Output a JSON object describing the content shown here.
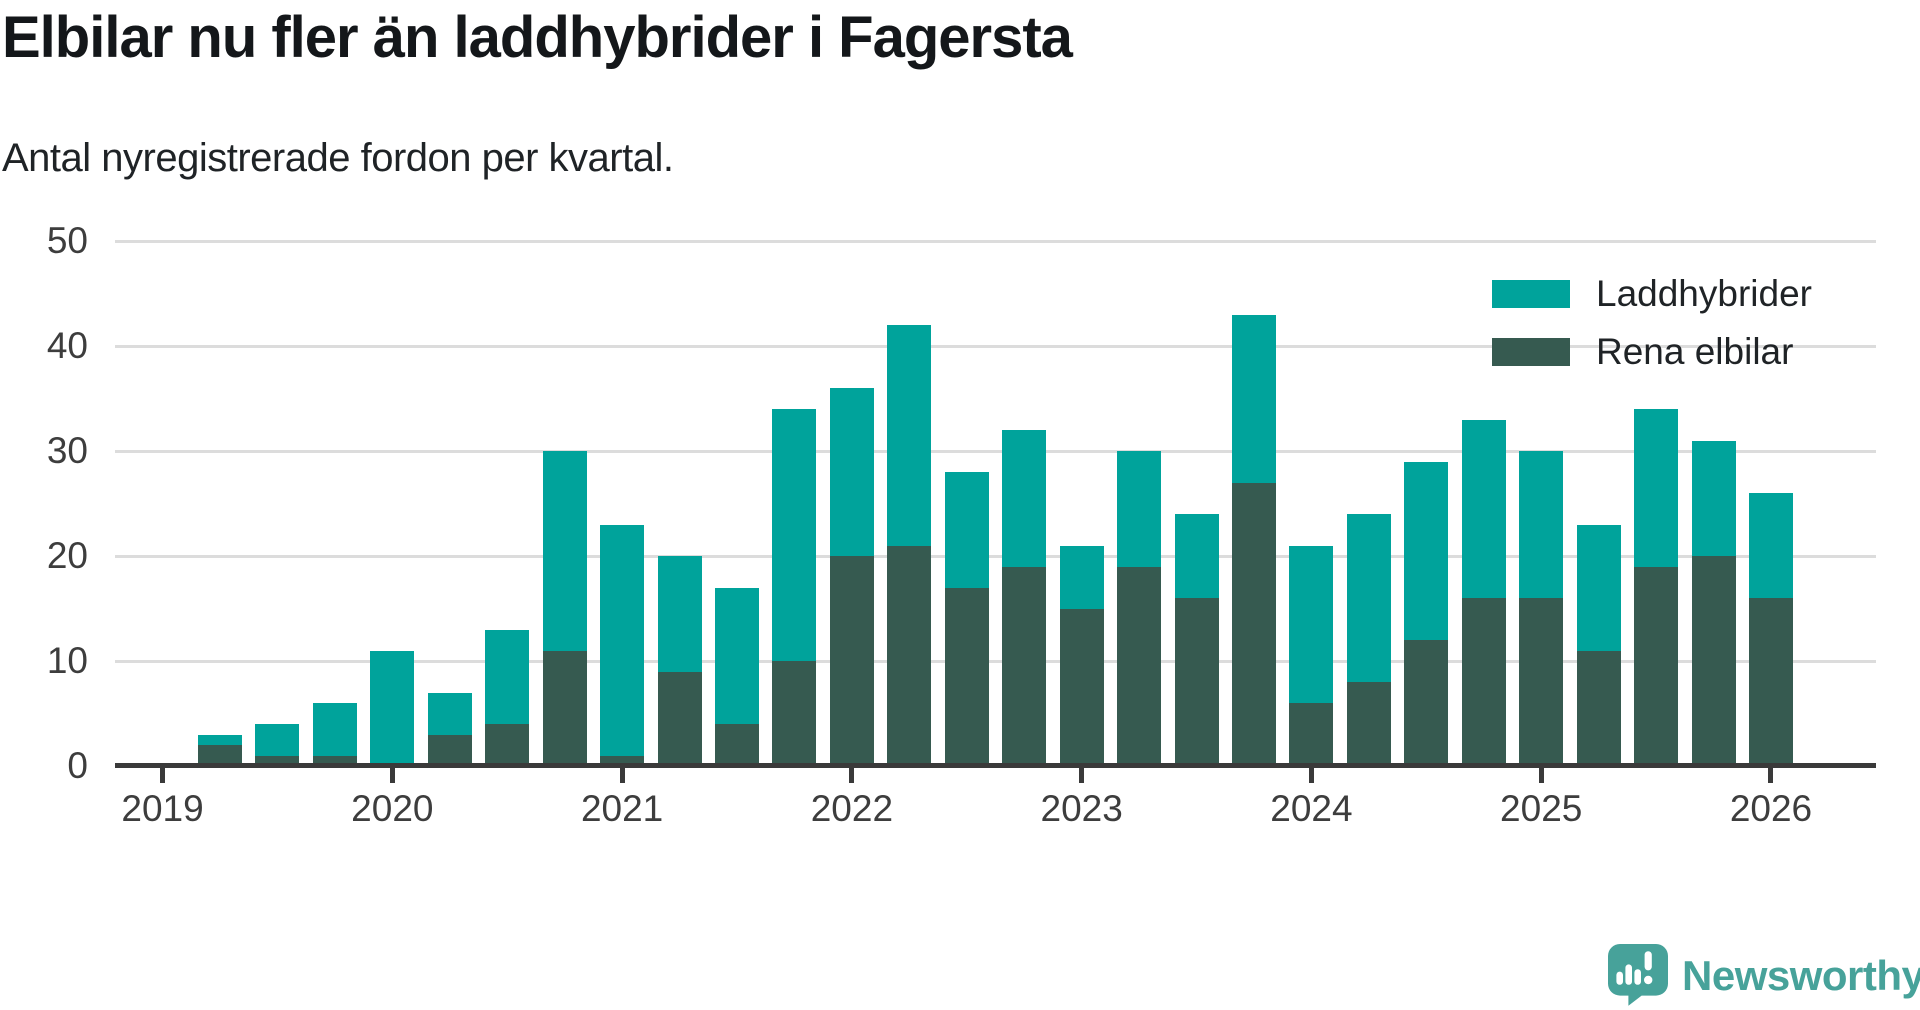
{
  "chart_data": {
    "type": "bar",
    "stacked": true,
    "title": "Elbilar nu fler än laddhybrider i Fagersta",
    "subtitle": "Antal nyregistrerade fordon per kvartal.",
    "x_quarters": [
      "2019 Q2",
      "2019 Q3",
      "2019 Q4",
      "2020 Q1",
      "2020 Q2",
      "2020 Q3",
      "2020 Q4",
      "2021 Q1",
      "2021 Q2",
      "2021 Q3",
      "2021 Q4",
      "2022 Q1",
      "2022 Q2",
      "2022 Q3",
      "2022 Q4",
      "2023 Q1",
      "2023 Q2",
      "2023 Q3",
      "2023 Q4",
      "2024 Q1",
      "2024 Q2",
      "2024 Q3",
      "2024 Q4",
      "2025 Q1",
      "2025 Q2",
      "2025 Q3",
      "2025 Q4",
      "2026 Q1"
    ],
    "series": [
      {
        "name": "Rena elbilar",
        "color": "#365a50",
        "values": [
          2,
          1,
          1,
          0,
          3,
          4,
          11,
          1,
          9,
          4,
          10,
          20,
          21,
          17,
          19,
          15,
          19,
          16,
          27,
          6,
          8,
          12,
          16,
          16,
          11,
          19,
          20,
          16
        ]
      },
      {
        "name": "Laddhybrider",
        "color": "#00a39b",
        "values": [
          1,
          3,
          5,
          11,
          4,
          9,
          19,
          22,
          11,
          13,
          24,
          16,
          21,
          11,
          13,
          6,
          11,
          8,
          16,
          15,
          16,
          17,
          17,
          14,
          12,
          15,
          11,
          10
        ]
      }
    ],
    "totals": [
      3,
      4,
      6,
      11,
      7,
      13,
      30,
      23,
      20,
      17,
      34,
      36,
      42,
      28,
      32,
      21,
      30,
      24,
      43,
      21,
      24,
      29,
      33,
      30,
      23,
      34,
      31,
      26
    ],
    "stack_bottom_to_top": true,
    "legend_order": [
      "Laddhybrider",
      "Rena elbilar"
    ],
    "legend_position": "top-right",
    "ylim": [
      0,
      50
    ],
    "yticks": [
      0,
      10,
      20,
      30,
      40,
      50
    ],
    "x_year_ticks": [
      "2019",
      "2020",
      "2021",
      "2022",
      "2023",
      "2024",
      "2025",
      "2026"
    ],
    "grid": "horizontal"
  },
  "footer": {
    "brand": "Newsworthy",
    "brand_color": "#47a29a",
    "logo_icon": "speech-bubble-bar-chart-exclamation"
  }
}
